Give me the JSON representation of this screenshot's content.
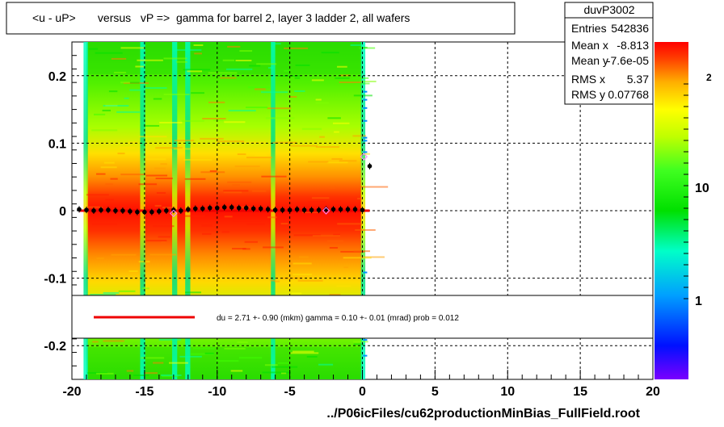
{
  "title": "<u - uP>       versus   vP =>  gamma for barrel 2, layer 3 ladder 2, all wafers",
  "footer": "../P06icFiles/cu62productionMinBias_FullField.root",
  "stats": {
    "name": "duvP3002",
    "rows": [
      {
        "label": "Entries",
        "value": "542836"
      },
      {
        "label": "Mean x",
        "value": "-8.813"
      },
      {
        "label": "Mean y",
        "value": "-7.6e-05"
      },
      {
        "label": "RMS x",
        "value": "5.37"
      },
      {
        "label": "RMS y",
        "value": "0.07768"
      }
    ]
  },
  "fit_label": "du =    2.71 +-  0.90 (mkm) gamma =    0.10 +-  0.01 (mrad) prob = 0.012",
  "colors": {
    "fit_line": "#ee0000",
    "markers": "#000000",
    "outlier": "#ff88ff"
  },
  "chart_data": {
    "type": "heatmap",
    "xlim": [
      -20,
      20
    ],
    "ylim": [
      -0.25,
      0.25
    ],
    "x_ticks": [
      "-20",
      "-15",
      "-10",
      "-5",
      "0",
      "5",
      "10",
      "15",
      "20"
    ],
    "x_tick_values": [
      -20,
      -15,
      -10,
      -5,
      0,
      5,
      10,
      15,
      20
    ],
    "y_ticks": [
      "-0.2",
      "-0.1",
      "0",
      "0.1",
      "0.2"
    ],
    "y_tick_values": [
      -0.2,
      -0.1,
      0,
      0.1,
      0.2
    ],
    "colorbar_ticks": [
      "1",
      "10",
      "10^2"
    ],
    "colorbar_tick_values": [
      1,
      10,
      100
    ],
    "grid": true,
    "fill_x_range": [
      -19,
      0
    ],
    "profile": {
      "x": [
        -19.5,
        -19,
        -18.5,
        -18,
        -17.5,
        -17,
        -16.5,
        -16,
        -15.5,
        -15,
        -14.5,
        -14,
        -13.5,
        -13,
        -12.5,
        -12,
        -11.5,
        -11,
        -10.5,
        -10,
        -9.5,
        -9,
        -8.5,
        -8,
        -7.5,
        -7,
        -6.5,
        -6,
        -5.5,
        -5,
        -4.5,
        -4,
        -3.5,
        -3,
        -2.5,
        -2,
        -1.5,
        -1,
        -0.5,
        0,
        0.5
      ],
      "y": [
        0.002,
        0.001,
        0.0,
        0.001,
        0.001,
        0.0,
        0.0,
        -0.001,
        -0.002,
        -0.002,
        -0.002,
        -0.001,
        0.0,
        0.001,
        0.0,
        0.002,
        0.003,
        0.003,
        0.004,
        0.004,
        0.005,
        0.005,
        0.004,
        0.004,
        0.003,
        0.003,
        0.002,
        0.001,
        0.001,
        0.001,
        0.002,
        0.001,
        0.001,
        0.001,
        0.002,
        0.002,
        0.002,
        0.002,
        0.002,
        0.001,
        0.066
      ]
    },
    "fit_line": {
      "x": [
        -19.5,
        0.5
      ],
      "y": [
        0.0,
        0.0
      ]
    },
    "outlier_markers": [
      {
        "x": 0.1,
        "y": 0.08
      },
      {
        "x": -2.5,
        "y": 0.0
      },
      {
        "x": -13,
        "y": -0.004
      }
    ]
  }
}
